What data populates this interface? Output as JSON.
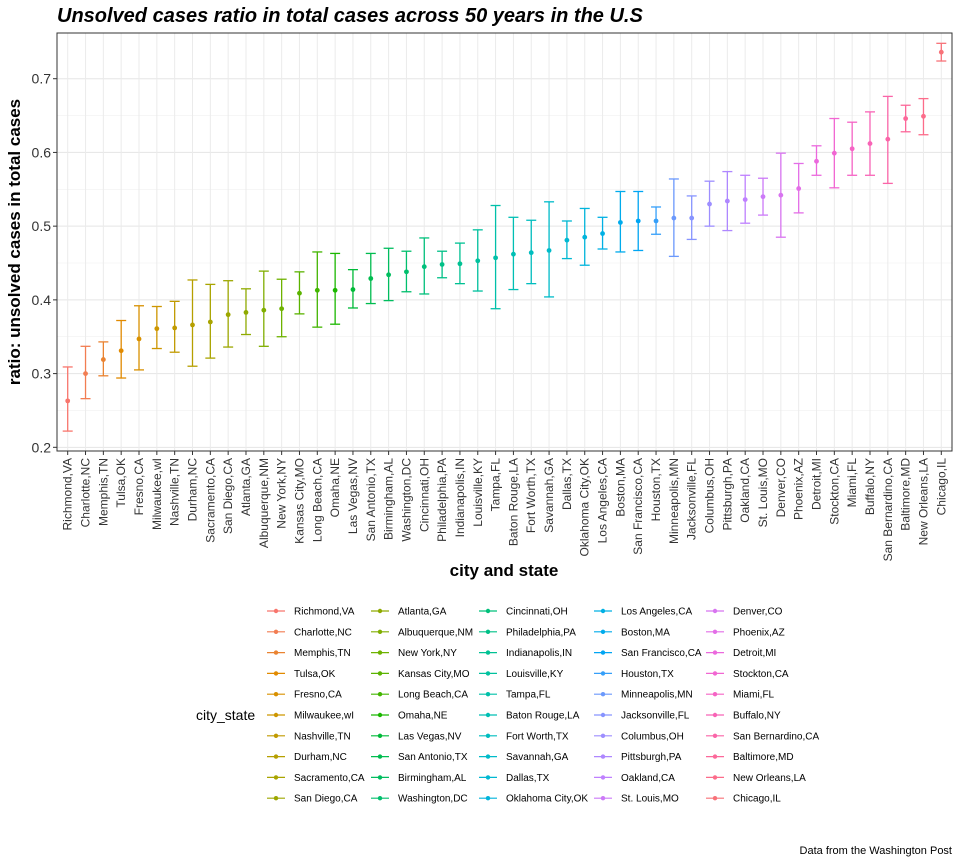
{
  "chart_data": {
    "type": "scatter",
    "title": "Unsolved cases ratio in total cases across 50 years in the U.S",
    "xlabel": "city and state",
    "ylabel": "ratio: unsolved cases in total cases",
    "caption": "Data from the Washington Post",
    "legend_title": "city_state",
    "legend_placement": "bottom",
    "grid": true,
    "ylim": [
      0.195,
      0.762
    ],
    "y_ticks": [
      0.2,
      0.3,
      0.4,
      0.5,
      0.6,
      0.7
    ],
    "y_tick_labels": [
      "0.2",
      "0.3",
      "0.4",
      "0.5",
      "0.6",
      "0.7"
    ],
    "categories": [
      "Richmond,VA",
      "Charlotte,NC",
      "Memphis,TN",
      "Tulsa,OK",
      "Fresno,CA",
      "Milwaukee,wI",
      "Nashville,TN",
      "Durham,NC",
      "Sacramento,CA",
      "San Diego,CA",
      "Atlanta,GA",
      "Albuquerque,NM",
      "New York,NY",
      "Kansas City,MO",
      "Long Beach,CA",
      "Omaha,NE",
      "Las Vegas,NV",
      "San Antonio,TX",
      "Birmingham,AL",
      "Washington,DC",
      "Cincinnati,OH",
      "Philadelphia,PA",
      "Indianapolis,IN",
      "Louisville,KY",
      "Tampa,FL",
      "Baton Rouge,LA",
      "Fort Worth,TX",
      "Savannah,GA",
      "Dallas,TX",
      "Oklahoma City,OK",
      "Los Angeles,CA",
      "Boston,MA",
      "San Francisco,CA",
      "Houston,TX",
      "Minneapolis,MN",
      "Jacksonville,FL",
      "Columbus,OH",
      "Pittsburgh,PA",
      "Oakland,CA",
      "St. Louis,MO",
      "Denver,CO",
      "Phoenix,AZ",
      "Detroit,MI",
      "Stockton,CA",
      "Miami,FL",
      "Buffalo,NY",
      "San Bernardino,CA",
      "Baltimore,MD",
      "New Orleans,LA",
      "Chicago,IL"
    ],
    "estimate": [
      0.263,
      0.3,
      0.319,
      0.331,
      0.347,
      0.361,
      0.362,
      0.366,
      0.37,
      0.38,
      0.383,
      0.386,
      0.388,
      0.409,
      0.413,
      0.413,
      0.414,
      0.429,
      0.434,
      0.438,
      0.445,
      0.448,
      0.449,
      0.453,
      0.457,
      0.462,
      0.464,
      0.467,
      0.481,
      0.485,
      0.49,
      0.505,
      0.507,
      0.507,
      0.511,
      0.511,
      0.53,
      0.534,
      0.536,
      0.54,
      0.542,
      0.551,
      0.588,
      0.599,
      0.605,
      0.612,
      0.618,
      0.646,
      0.649,
      0.736
    ],
    "conf_low": [
      0.222,
      0.266,
      0.297,
      0.294,
      0.305,
      0.334,
      0.329,
      0.31,
      0.321,
      0.336,
      0.353,
      0.337,
      0.35,
      0.381,
      0.363,
      0.367,
      0.389,
      0.395,
      0.399,
      0.411,
      0.408,
      0.43,
      0.422,
      0.412,
      0.388,
      0.414,
      0.422,
      0.404,
      0.456,
      0.447,
      0.469,
      0.465,
      0.467,
      0.489,
      0.459,
      0.482,
      0.5,
      0.494,
      0.504,
      0.515,
      0.485,
      0.518,
      0.569,
      0.552,
      0.569,
      0.569,
      0.558,
      0.628,
      0.624,
      0.724
    ],
    "conf_high": [
      0.309,
      0.337,
      0.343,
      0.372,
      0.392,
      0.391,
      0.398,
      0.427,
      0.421,
      0.426,
      0.415,
      0.439,
      0.428,
      0.438,
      0.465,
      0.463,
      0.441,
      0.463,
      0.47,
      0.466,
      0.484,
      0.466,
      0.477,
      0.495,
      0.528,
      0.512,
      0.508,
      0.533,
      0.507,
      0.524,
      0.512,
      0.547,
      0.547,
      0.526,
      0.564,
      0.541,
      0.561,
      0.574,
      0.569,
      0.565,
      0.599,
      0.585,
      0.609,
      0.646,
      0.641,
      0.655,
      0.676,
      0.664,
      0.673,
      0.748
    ],
    "colors": [
      "#F8766D",
      "#F27D52",
      "#EA8331",
      "#E18A00",
      "#D89000",
      "#CD9600",
      "#C19A00",
      "#B69F00",
      "#A9A400",
      "#9DA700",
      "#8FAA00",
      "#80AE00",
      "#6EB200",
      "#5BB300",
      "#43B500",
      "#1BB700",
      "#00BA38",
      "#00BC4F",
      "#00BD5F",
      "#00BF6D",
      "#00C07B",
      "#00C087",
      "#00C193",
      "#00C19E",
      "#00C0A9",
      "#00BFB4",
      "#00BDBF",
      "#00BBC9",
      "#00B8D2",
      "#00B4DB",
      "#00B0E4",
      "#00ABEC",
      "#00A5F3",
      "#359FF9",
      "#6B99FC",
      "#8794FF",
      "#9D8EFF",
      "#AE87FF",
      "#BF80FF",
      "#CC7AF8",
      "#D874F0",
      "#E36EE7",
      "#EB68DD",
      "#F166D2",
      "#F564C5",
      "#F864B6",
      "#FA65A8",
      "#FC689A",
      "#FC6C8A",
      "#F87279"
    ]
  }
}
